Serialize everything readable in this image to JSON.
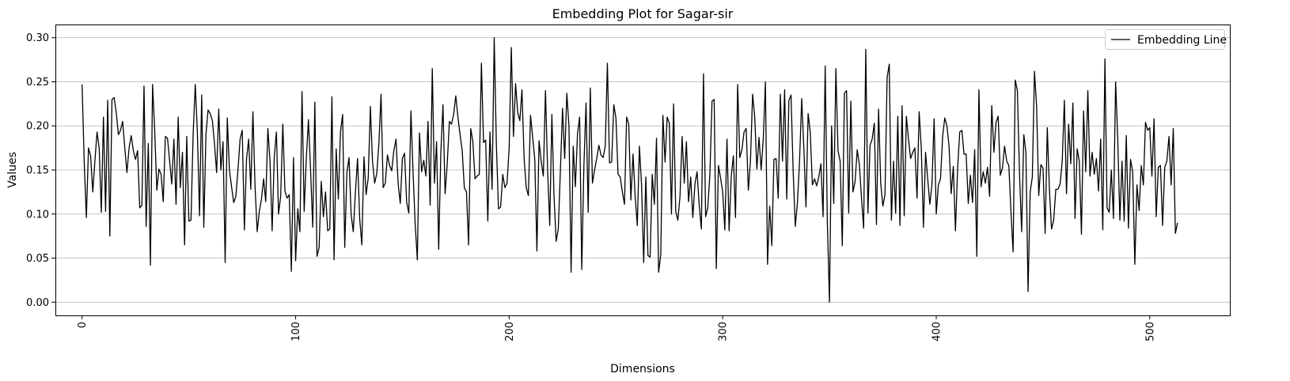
{
  "chart_data": {
    "type": "line",
    "title": "Embedding Plot for Sagar-sir",
    "xlabel": "Dimensions",
    "ylabel": "Values",
    "xlim": [
      -12.5,
      537.5
    ],
    "ylim": [
      -0.015,
      0.315
    ],
    "xticks": [
      0,
      100,
      200,
      300,
      400,
      500
    ],
    "yticks": [
      0.0,
      0.05,
      0.1,
      0.15,
      0.2,
      0.25,
      0.3
    ],
    "ytick_labels": [
      "0.00",
      "0.05",
      "0.10",
      "0.15",
      "0.20",
      "0.25",
      "0.30"
    ],
    "grid": "y",
    "legend_position": "top-right",
    "line_color": "#000000",
    "series": [
      {
        "name": "Embedding Line",
        "values": [
          0.247,
          0.158,
          0.096,
          0.175,
          0.166,
          0.125,
          0.16,
          0.193,
          0.175,
          0.102,
          0.21,
          0.103,
          0.229,
          0.075,
          0.23,
          0.232,
          0.215,
          0.19,
          0.195,
          0.205,
          0.175,
          0.147,
          0.175,
          0.189,
          0.172,
          0.162,
          0.172,
          0.107,
          0.11,
          0.245,
          0.086,
          0.18,
          0.042,
          0.247,
          0.195,
          0.127,
          0.151,
          0.145,
          0.114,
          0.188,
          0.186,
          0.16,
          0.134,
          0.185,
          0.111,
          0.21,
          0.13,
          0.17,
          0.065,
          0.188,
          0.092,
          0.093,
          0.19,
          0.247,
          0.192,
          0.098,
          0.235,
          0.085,
          0.19,
          0.218,
          0.214,
          0.206,
          0.18,
          0.147,
          0.219,
          0.15,
          0.182,
          0.045,
          0.209,
          0.15,
          0.131,
          0.113,
          0.12,
          0.15,
          0.185,
          0.195,
          0.082,
          0.162,
          0.185,
          0.128,
          0.216,
          0.131,
          0.08,
          0.103,
          0.117,
          0.14,
          0.114,
          0.197,
          0.16,
          0.081,
          0.165,
          0.193,
          0.1,
          0.12,
          0.202,
          0.126,
          0.118,
          0.122,
          0.035,
          0.164,
          0.047,
          0.106,
          0.08,
          0.239,
          0.103,
          0.163,
          0.207,
          0.15,
          0.085,
          0.227,
          0.052,
          0.062,
          0.137,
          0.097,
          0.125,
          0.081,
          0.083,
          0.233,
          0.048,
          0.174,
          0.117,
          0.193,
          0.213,
          0.062,
          0.147,
          0.164,
          0.099,
          0.08,
          0.125,
          0.163,
          0.095,
          0.065,
          0.165,
          0.122,
          0.141,
          0.222,
          0.16,
          0.135,
          0.146,
          0.18,
          0.236,
          0.13,
          0.135,
          0.167,
          0.155,
          0.149,
          0.172,
          0.185,
          0.135,
          0.112,
          0.163,
          0.169,
          0.113,
          0.101,
          0.217,
          0.147,
          0.088,
          0.048,
          0.192,
          0.148,
          0.161,
          0.143,
          0.205,
          0.11,
          0.265,
          0.135,
          0.182,
          0.06,
          0.17,
          0.224,
          0.123,
          0.157,
          0.205,
          0.202,
          0.213,
          0.234,
          0.21,
          0.19,
          0.172,
          0.13,
          0.125,
          0.065,
          0.197,
          0.182,
          0.14,
          0.143,
          0.145,
          0.271,
          0.181,
          0.184,
          0.092,
          0.193,
          0.128,
          0.3,
          0.18,
          0.106,
          0.108,
          0.145,
          0.13,
          0.135,
          0.175,
          0.289,
          0.188,
          0.248,
          0.215,
          0.206,
          0.241,
          0.163,
          0.13,
          0.121,
          0.212,
          0.187,
          0.162,
          0.058,
          0.183,
          0.16,
          0.143,
          0.24,
          0.15,
          0.087,
          0.213,
          0.121,
          0.069,
          0.083,
          0.15,
          0.22,
          0.163,
          0.237,
          0.2,
          0.034,
          0.177,
          0.131,
          0.191,
          0.21,
          0.037,
          0.155,
          0.226,
          0.102,
          0.243,
          0.135,
          0.15,
          0.163,
          0.178,
          0.167,
          0.164,
          0.177,
          0.271,
          0.158,
          0.159,
          0.224,
          0.209,
          0.145,
          0.142,
          0.125,
          0.111,
          0.21,
          0.202,
          0.116,
          0.168,
          0.12,
          0.087,
          0.177,
          0.133,
          0.045,
          0.142,
          0.053,
          0.051,
          0.145,
          0.111,
          0.186,
          0.034,
          0.054,
          0.212,
          0.159,
          0.21,
          0.203,
          0.1,
          0.225,
          0.103,
          0.093,
          0.12,
          0.188,
          0.135,
          0.182,
          0.114,
          0.142,
          0.096,
          0.134,
          0.148,
          0.11,
          0.083,
          0.259,
          0.097,
          0.107,
          0.145,
          0.228,
          0.23,
          0.038,
          0.155,
          0.141,
          0.125,
          0.082,
          0.185,
          0.081,
          0.143,
          0.166,
          0.096,
          0.247,
          0.164,
          0.173,
          0.193,
          0.197,
          0.127,
          0.16,
          0.236,
          0.21,
          0.151,
          0.187,
          0.15,
          0.185,
          0.25,
          0.043,
          0.109,
          0.064,
          0.162,
          0.163,
          0.118,
          0.236,
          0.16,
          0.241,
          0.117,
          0.229,
          0.235,
          0.148,
          0.086,
          0.113,
          0.161,
          0.231,
          0.175,
          0.108,
          0.214,
          0.193,
          0.133,
          0.14,
          0.132,
          0.142,
          0.157,
          0.097,
          0.268,
          0.091,
          0.0,
          0.2,
          0.112,
          0.265,
          0.172,
          0.16,
          0.064,
          0.237,
          0.24,
          0.101,
          0.228,
          0.125,
          0.137,
          0.173,
          0.156,
          0.118,
          0.084,
          0.287,
          0.101,
          0.178,
          0.185,
          0.203,
          0.088,
          0.219,
          0.135,
          0.109,
          0.122,
          0.255,
          0.27,
          0.093,
          0.16,
          0.101,
          0.211,
          0.087,
          0.223,
          0.098,
          0.211,
          0.185,
          0.163,
          0.17,
          0.175,
          0.118,
          0.216,
          0.175,
          0.085,
          0.17,
          0.14,
          0.111,
          0.134,
          0.208,
          0.1,
          0.133,
          0.14,
          0.188,
          0.209,
          0.2,
          0.177,
          0.123,
          0.154,
          0.081,
          0.151,
          0.193,
          0.195,
          0.168,
          0.168,
          0.112,
          0.144,
          0.113,
          0.173,
          0.052,
          0.241,
          0.131,
          0.148,
          0.135,
          0.153,
          0.12,
          0.223,
          0.17,
          0.204,
          0.211,
          0.144,
          0.152,
          0.177,
          0.16,
          0.155,
          0.102,
          0.057,
          0.252,
          0.24,
          0.145,
          0.08,
          0.19,
          0.17,
          0.012,
          0.125,
          0.142,
          0.262,
          0.222,
          0.121,
          0.156,
          0.152,
          0.078,
          0.198,
          0.128,
          0.083,
          0.093,
          0.128,
          0.128,
          0.134,
          0.16,
          0.229,
          0.123,
          0.202,
          0.157,
          0.226,
          0.095,
          0.174,
          0.16,
          0.077,
          0.217,
          0.148,
          0.24,
          0.143,
          0.17,
          0.145,
          0.163,
          0.126,
          0.185,
          0.082,
          0.276,
          0.107,
          0.102,
          0.15,
          0.095,
          0.25,
          0.185,
          0.093,
          0.16,
          0.092,
          0.189,
          0.084,
          0.162,
          0.148,
          0.043,
          0.133,
          0.104,
          0.155,
          0.133,
          0.204,
          0.195,
          0.198,
          0.143,
          0.208,
          0.097,
          0.153,
          0.155,
          0.087,
          0.153,
          0.16,
          0.188,
          0.133,
          0.197,
          0.078,
          0.09
        ]
      }
    ]
  }
}
